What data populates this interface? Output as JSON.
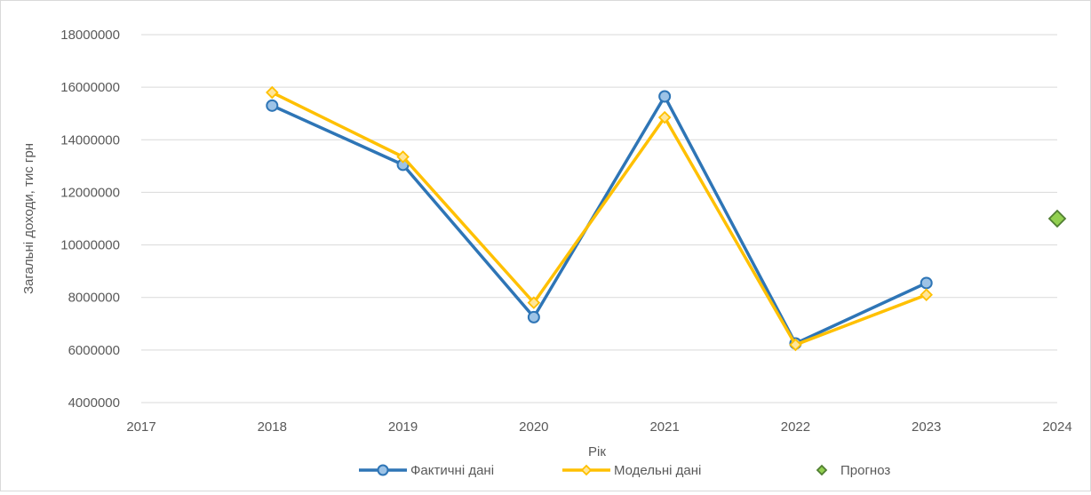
{
  "chart_data": {
    "type": "line",
    "title": "",
    "xlabel": "Рік",
    "ylabel": "Загальні доходи, тис грн",
    "xlim": [
      2017,
      2024
    ],
    "ylim": [
      4000000,
      18000000
    ],
    "x_ticks": [
      2017,
      2018,
      2019,
      2020,
      2021,
      2022,
      2023,
      2024
    ],
    "x_tick_labels": [
      "2017",
      "2018",
      "2019",
      "2020",
      "2021",
      "2022",
      "2023",
      "2024"
    ],
    "y_ticks": [
      4000000,
      6000000,
      8000000,
      10000000,
      12000000,
      14000000,
      16000000,
      18000000
    ],
    "y_tick_labels": [
      "4000000",
      "6000000",
      "8000000",
      "10000000",
      "12000000",
      "14000000",
      "16000000",
      "18000000"
    ],
    "grid": "horizontal",
    "legend_position": "bottom",
    "series": [
      {
        "name": "Фактичні дані",
        "color": "#2e75b6",
        "marker": "circle",
        "line": true,
        "x": [
          2018,
          2019,
          2020,
          2021,
          2022,
          2023
        ],
        "y": [
          15300000,
          13050000,
          7250000,
          15650000,
          6250000,
          8550000
        ]
      },
      {
        "name": "Модельні дані",
        "color": "#ffc000",
        "marker": "diamond",
        "line": true,
        "x": [
          2018,
          2019,
          2020,
          2021,
          2022,
          2023
        ],
        "y": [
          15800000,
          13350000,
          7800000,
          14850000,
          6200000,
          8100000
        ]
      },
      {
        "name": "Прогноз",
        "color": "#70ad47",
        "marker": "diamond",
        "line": false,
        "x": [
          2024
        ],
        "y": [
          11000000
        ]
      }
    ]
  }
}
